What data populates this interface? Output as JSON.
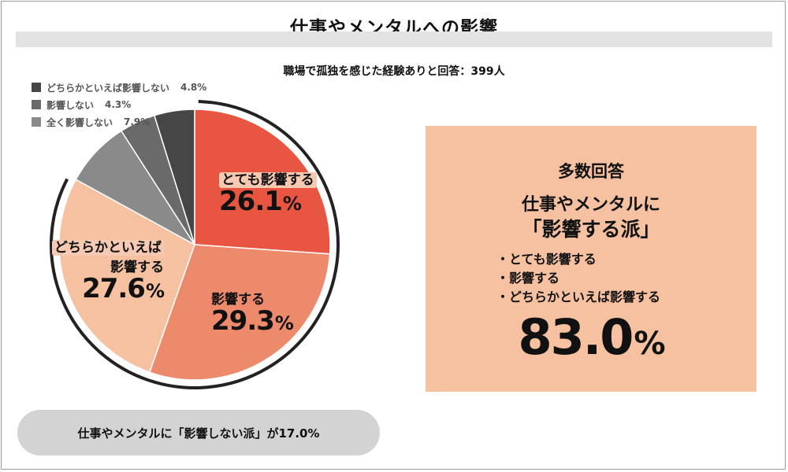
{
  "title": "仕事やメンタルへの影響",
  "subtitle": "職場で孤独を感じた経験ありと回答：399人",
  "chart_data": {
    "type": "pie",
    "title": "仕事やメンタルへの影響",
    "subtitle": "職場で孤独を感じた経験ありと回答：399人",
    "unit": "%",
    "start": "12 o'clock, clockwise",
    "slices": [
      {
        "label": "とても影響する",
        "value": 26.1,
        "value_text": "26.1",
        "color": "#e85540"
      },
      {
        "label": "影響する",
        "value": 29.3,
        "value_text": "29.3",
        "color": "#ee8a6c"
      },
      {
        "label": "どちらかといえば影響する",
        "label_line1": "どちらかといえば",
        "label_line2": "影響する",
        "value": 27.6,
        "value_text": "27.6",
        "color": "#f5c1a1"
      },
      {
        "label": "全く影響しない",
        "value": 7.9,
        "value_text": "7.9%",
        "color": "#8a8a8a"
      },
      {
        "label": "影響しない",
        "value": 4.3,
        "value_text": "4.3%",
        "color": "#6a6a6a"
      },
      {
        "label": "どちらかといえば影響しない",
        "value": 4.8,
        "value_text": "4.8%",
        "color": "#464646"
      }
    ],
    "legend": {
      "placement": "top-left",
      "order": [
        5,
        4,
        3
      ]
    },
    "group_arcs": [
      {
        "label": "影響する派",
        "from": 0,
        "to": 2,
        "color": "#222222"
      }
    ]
  },
  "summary": {
    "heading": "多数回答",
    "line1": "仕事やメンタルに",
    "line2": "「影響する派」",
    "items": [
      "・とても影響する",
      "・影響する",
      "・どちらかといえば影響する"
    ],
    "total": "83.0",
    "total_unit": "%"
  },
  "footer": {
    "text": "仕事やメンタルに「影響しない派」が17.0%"
  }
}
